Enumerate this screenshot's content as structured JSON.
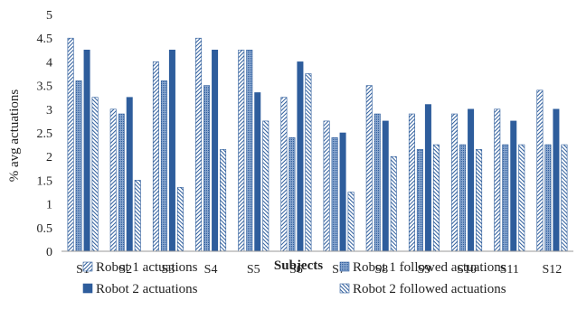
{
  "chart_data": {
    "type": "bar",
    "title": "",
    "xlabel": "Subjects",
    "ylabel": "% avg actuations",
    "ylim": [
      0,
      5
    ],
    "yticks": [
      "0",
      "0.5",
      "1",
      "1.5",
      "2",
      "2.5",
      "3",
      "3.5",
      "4",
      "4.5",
      "5"
    ],
    "categories": [
      "S1",
      "S2",
      "S3",
      "S4",
      "S5",
      "S6",
      "S7",
      "S8",
      "S9",
      "S10",
      "S11",
      "S12"
    ],
    "series": [
      {
        "name": "Robot 1 actuations",
        "pattern": "diag-up",
        "values": [
          4.5,
          3.0,
          4.0,
          4.5,
          4.25,
          3.25,
          2.75,
          3.5,
          2.9,
          2.9,
          3.0,
          3.4
        ]
      },
      {
        "name": "Robot 1 followed actuations",
        "pattern": "dots",
        "values": [
          3.6,
          2.9,
          3.6,
          3.5,
          4.25,
          2.4,
          2.4,
          2.9,
          2.15,
          2.25,
          2.25,
          2.25
        ]
      },
      {
        "name": "Robot 2 actuations",
        "pattern": "solid",
        "values": [
          4.25,
          3.25,
          4.25,
          4.25,
          3.35,
          4.0,
          2.5,
          2.75,
          3.1,
          3.0,
          2.75,
          3.0
        ]
      },
      {
        "name": "Robot 2 followed actuations",
        "pattern": "diag-down",
        "values": [
          3.25,
          1.5,
          1.35,
          2.15,
          2.75,
          3.75,
          1.25,
          2.0,
          2.25,
          2.15,
          2.25,
          2.25
        ]
      }
    ],
    "grid": false,
    "legend": "bottom",
    "colors": {
      "bar": "#2e5d9c",
      "bar_light": "#ffffff",
      "axis": "#888888"
    }
  }
}
